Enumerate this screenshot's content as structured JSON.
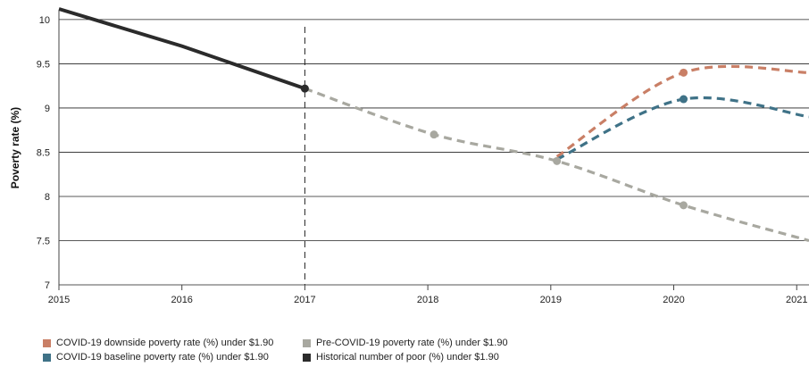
{
  "chart_data": {
    "type": "line",
    "title": "",
    "xlabel": "",
    "ylabel": "Poverty rate (%)",
    "xlim": [
      2015,
      2021.1
    ],
    "ylim": [
      7,
      10.1
    ],
    "x_ticks": [
      "2015",
      "2016",
      "2017",
      "2018",
      "2019",
      "2020",
      "2021"
    ],
    "y_ticks": [
      "7",
      "7.5",
      "8",
      "8.5",
      "9",
      "9.5",
      "10"
    ],
    "grid": "horizontal",
    "legend_position": "bottom",
    "projection_start": 2017,
    "series": [
      {
        "name": "COVID-19 downside poverty rate (%) under $1.90",
        "color": "#c97f66",
        "style": "dashed",
        "points": [
          [
            2019.05,
            8.45
          ],
          [
            2020.08,
            9.4
          ],
          [
            2021.1,
            9.4
          ]
        ],
        "markers": [
          2020.08
        ]
      },
      {
        "name": "COVID-19 baseline poverty rate (%) under $1.90",
        "color": "#3f7287",
        "style": "dashed",
        "points": [
          [
            2019.05,
            8.42
          ],
          [
            2020.08,
            9.1
          ],
          [
            2021.1,
            8.9
          ]
        ],
        "markers": [
          2020.08
        ]
      },
      {
        "name": "Pre-COVID-19 poverty rate (%) under $1.90",
        "color": "#a8a8a0",
        "style": "dashed",
        "points": [
          [
            2017.0,
            9.22
          ],
          [
            2018.05,
            8.7
          ],
          [
            2019.05,
            8.4
          ],
          [
            2020.08,
            7.9
          ],
          [
            2021.1,
            7.5
          ]
        ],
        "markers": [
          2018.05,
          2019.05,
          2020.08
        ]
      },
      {
        "name": "Historical number of poor (%) under $1.90",
        "color": "#2b2b2b",
        "style": "solid",
        "points": [
          [
            2015.0,
            10.12
          ],
          [
            2016.0,
            9.7
          ],
          [
            2017.0,
            9.22
          ]
        ],
        "markers": [
          2017.0
        ]
      }
    ],
    "legend": [
      [
        "COVID-19 downside poverty rate (%) under $1.90",
        "Pre-COVID-19 poverty rate (%) under $1.90"
      ],
      [
        "COVID-19 baseline poverty rate (%) under $1.90",
        "Historical number of poor (%) under $1.90"
      ]
    ],
    "legend_colors": [
      [
        "#c97f66",
        "#a8a8a0"
      ],
      [
        "#3f7287",
        "#2b2b2b"
      ]
    ]
  }
}
